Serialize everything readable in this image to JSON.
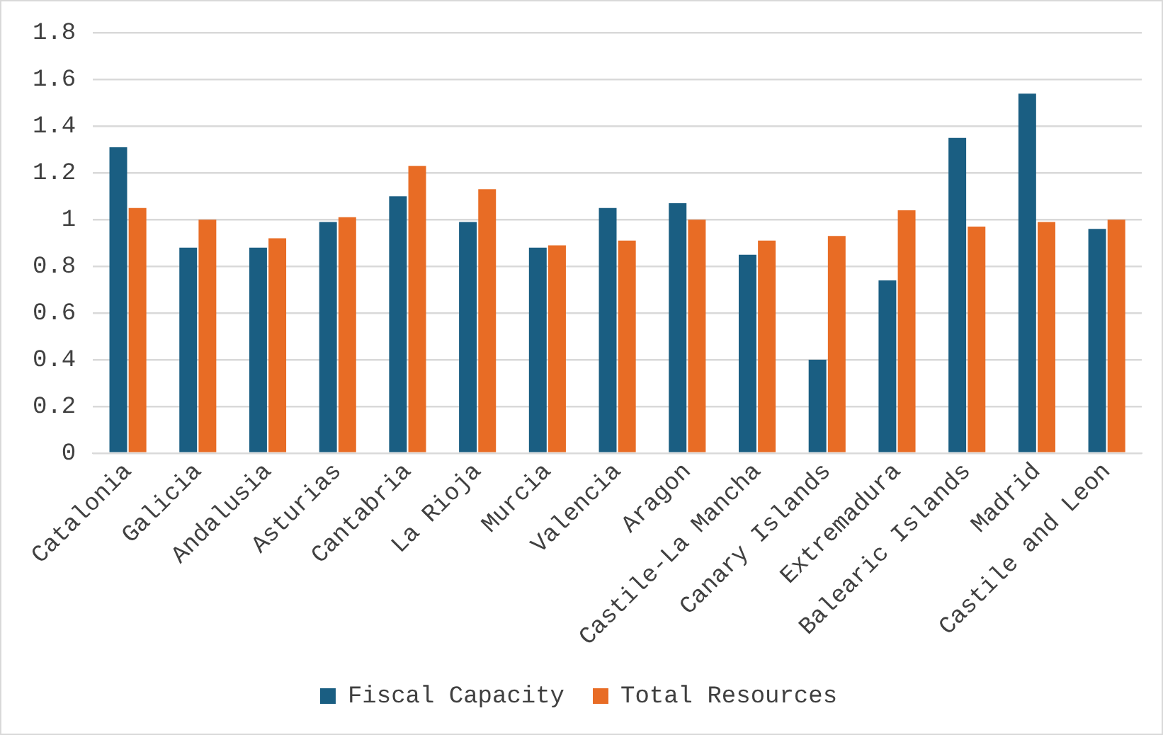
{
  "chart_data": {
    "type": "bar",
    "categories": [
      "Catalonia",
      "Galicia",
      "Andalusia",
      "Asturias",
      "Cantabria",
      "La Rioja",
      "Murcia",
      "Valencia",
      "Aragon",
      "Castile-La Mancha",
      "Canary Islands",
      "Extremadura",
      "Balearic Islands",
      "Madrid",
      "Castile and Leon"
    ],
    "series": [
      {
        "name": "Fiscal Capacity",
        "color": "#1a5e82",
        "values": [
          1.31,
          0.88,
          0.88,
          0.99,
          1.1,
          0.99,
          0.88,
          1.05,
          1.07,
          0.85,
          0.4,
          0.74,
          1.35,
          1.54,
          0.96
        ]
      },
      {
        "name": "Total Resources",
        "color": "#e86c25",
        "values": [
          1.05,
          1.0,
          0.92,
          1.01,
          1.23,
          1.13,
          0.89,
          0.91,
          1.0,
          0.91,
          0.93,
          1.04,
          0.97,
          0.99,
          1.0
        ]
      }
    ],
    "ylim": [
      0,
      1.8
    ],
    "yticks": [
      0,
      0.2,
      0.4,
      0.6,
      0.8,
      1,
      1.2,
      1.4,
      1.6,
      1.8
    ],
    "grid": "y",
    "legend": "bottom"
  }
}
